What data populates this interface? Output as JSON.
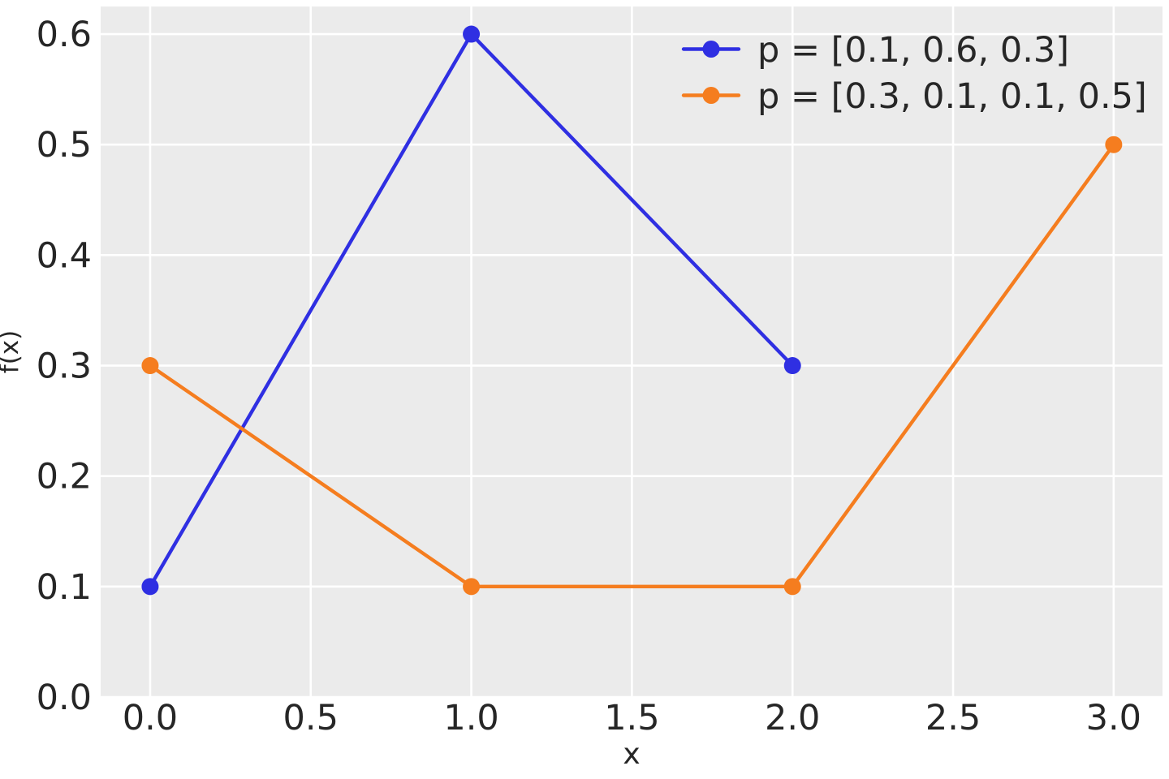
{
  "chart_data": {
    "type": "line",
    "title": "",
    "xlabel": "x",
    "ylabel": "f(x)",
    "xlim": [
      -0.154,
      3.152
    ],
    "ylim": [
      0,
      0.625
    ],
    "xticks": {
      "values": [
        0.0,
        0.5,
        1.0,
        1.5,
        2.0,
        2.5,
        3.0
      ],
      "labels": [
        "0.0",
        "0.5",
        "1.0",
        "1.5",
        "2.0",
        "2.5",
        "3.0"
      ]
    },
    "yticks": {
      "values": [
        0.0,
        0.1,
        0.2,
        0.3,
        0.4,
        0.5,
        0.6
      ],
      "labels": [
        "0.0",
        "0.1",
        "0.2",
        "0.3",
        "0.4",
        "0.5",
        "0.6"
      ]
    },
    "grid": true,
    "legend": {
      "position": "upper right",
      "frame": false,
      "entries": [
        "p = [0.1, 0.6, 0.3]",
        "p = [0.3, 0.1, 0.1, 0.5]"
      ]
    },
    "series": [
      {
        "name": "p = [0.1, 0.6, 0.3]",
        "color": "#2f2fe2",
        "marker": "circle",
        "x": [
          0,
          1,
          2
        ],
        "y": [
          0.1,
          0.6,
          0.3
        ]
      },
      {
        "name": "p = [0.3, 0.1, 0.1, 0.5]",
        "color": "#f57d1f",
        "marker": "circle",
        "x": [
          0,
          1,
          2,
          3
        ],
        "y": [
          0.3,
          0.1,
          0.1,
          0.5
        ]
      }
    ],
    "style": {
      "figure_background": "#ffffff",
      "plot_background": "#ebebeb",
      "grid_color": "#ffffff",
      "text_color": "#262626"
    }
  }
}
